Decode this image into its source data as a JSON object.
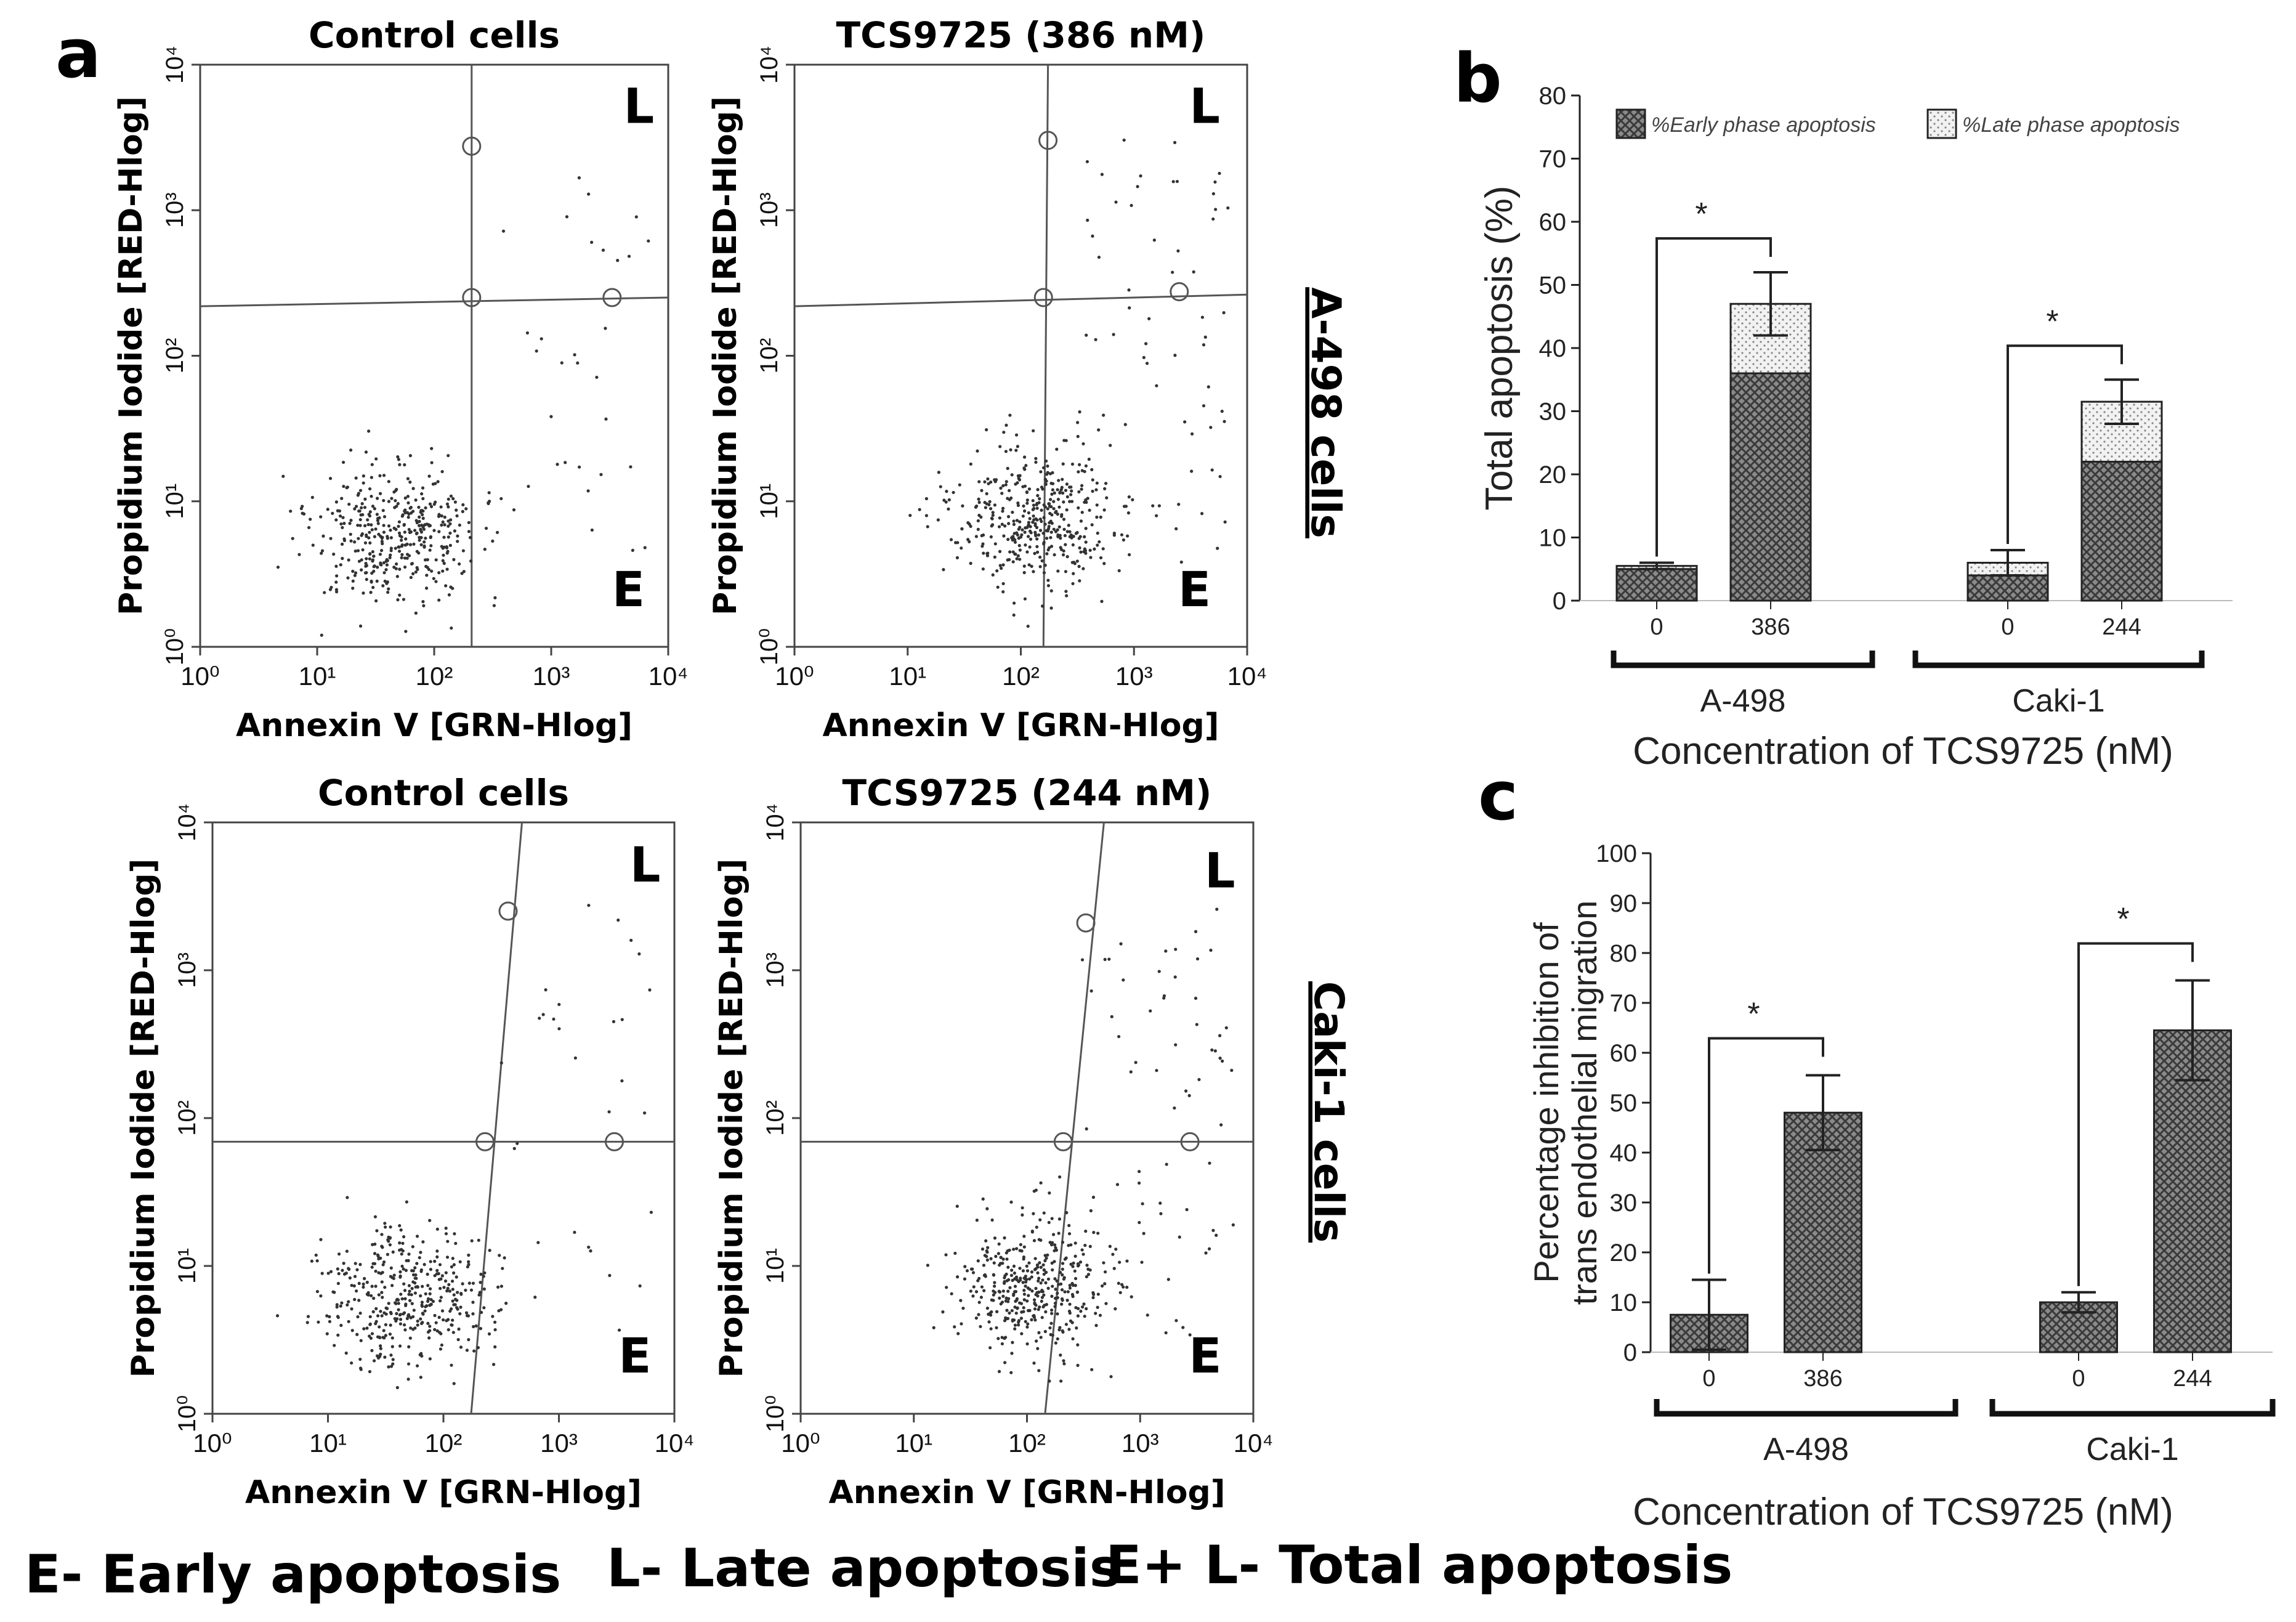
{
  "panel_letters": {
    "a": "a",
    "b": "b",
    "c": "c"
  },
  "legend_footer": {
    "early": "E- Early apoptosis",
    "late": "L- Late apoptosis",
    "total": "E+ L- Total apoptosis"
  },
  "row_labels": {
    "top": "A-498 cells",
    "bottom": "Caki-1 cells"
  },
  "flow_common": {
    "x_label": "Annexin V [GRN-Hlog]",
    "y_label": "Propidium Iodide [RED-Hlog]",
    "quadrant_early": "E",
    "quadrant_late": "L",
    "ticks": [
      "10⁰",
      "10¹",
      "10²",
      "10³",
      "10⁴"
    ]
  },
  "chart_data": [
    {
      "type": "scatter",
      "panel": "a",
      "title": "Control cells",
      "cell_line": "A-498",
      "xlabel": "Annexin V [GRN-Hlog]",
      "ylabel": "Propidium Iodide [RED-Hlog]",
      "xlim_log10": [
        0,
        4
      ],
      "ylim_log10": [
        0,
        4
      ]
    },
    {
      "type": "scatter",
      "panel": "a",
      "title": "TCS9725 (386 nM)",
      "cell_line": "A-498",
      "xlabel": "Annexin V [GRN-Hlog]",
      "ylabel": "Propidium Iodide [RED-Hlog]",
      "xlim_log10": [
        0,
        4
      ],
      "ylim_log10": [
        0,
        4
      ]
    },
    {
      "type": "scatter",
      "panel": "a",
      "title": "Control cells",
      "cell_line": "Caki-1",
      "xlabel": "Annexin V [GRN-Hlog]",
      "ylabel": "Propidium Iodide [RED-Hlog]",
      "xlim_log10": [
        0,
        4
      ],
      "ylim_log10": [
        0,
        4
      ]
    },
    {
      "type": "scatter",
      "panel": "a",
      "title": "TCS9725 (244 nM)",
      "cell_line": "Caki-1",
      "xlabel": "Annexin V [GRN-Hlog]",
      "ylabel": "Propidium Iodide [RED-Hlog]",
      "xlim_log10": [
        0,
        4
      ],
      "ylim_log10": [
        0,
        4
      ]
    },
    {
      "type": "bar",
      "panel": "b",
      "stacked": true,
      "ylabel": "Total apoptosis (%)",
      "xlabel": "Concentration of TCS9725 (nM)",
      "ylim": [
        0,
        80
      ],
      "yticks": [
        0,
        10,
        20,
        30,
        40,
        50,
        60,
        70,
        80
      ],
      "groups": [
        "A-498",
        "Caki-1"
      ],
      "categories": [
        "0",
        "386",
        "0",
        "244"
      ],
      "series": [
        {
          "name": "%Early phase apoptosis",
          "values": [
            5,
            36,
            4,
            22
          ]
        },
        {
          "name": "%Late phase apoptosis",
          "values": [
            0.5,
            11,
            2,
            9.5
          ]
        }
      ],
      "errors": [
        0.5,
        5,
        2,
        3.5
      ],
      "significance": [
        {
          "group": "A-498",
          "label": "*"
        },
        {
          "group": "Caki-1",
          "label": "*"
        }
      ]
    },
    {
      "type": "bar",
      "panel": "c",
      "ylabel": "Percentage inhibition of trans endothelial migration",
      "xlabel": "Concentration of TCS9725 (nM)",
      "ylim": [
        0,
        100
      ],
      "yticks": [
        0,
        10,
        20,
        30,
        40,
        50,
        60,
        70,
        80,
        90,
        100
      ],
      "groups": [
        "A-498",
        "Caki-1"
      ],
      "categories": [
        "0",
        "386",
        "0",
        "244"
      ],
      "values": [
        7.5,
        48,
        10,
        64.5
      ],
      "errors": [
        7,
        7.5,
        2,
        10
      ],
      "significance": [
        {
          "group": "A-498",
          "label": "*"
        },
        {
          "group": "Caki-1",
          "label": "*"
        }
      ]
    }
  ]
}
